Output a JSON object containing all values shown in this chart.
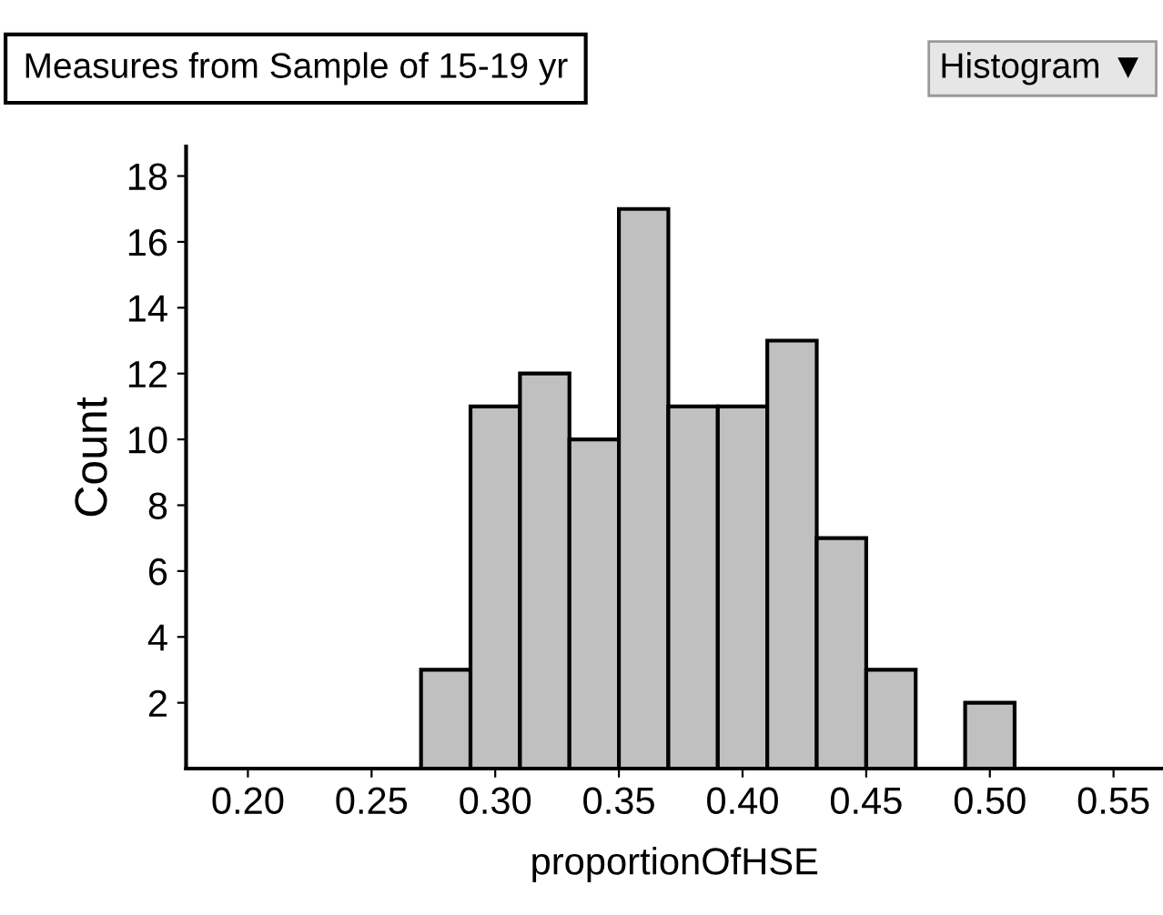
{
  "chart_data": {
    "type": "histogram",
    "title": "Measures from Sample of 15-19 yr",
    "annotations": [
      "Histogram ▼"
    ],
    "xlabel": "proportionOfHSE",
    "ylabel": "Count",
    "bins": [
      0.27,
      0.29,
      0.31,
      0.33,
      0.35,
      0.37,
      0.39,
      0.41,
      0.43,
      0.45,
      0.47,
      0.49,
      0.51
    ],
    "values": [
      3,
      11,
      12,
      10,
      17,
      11,
      11,
      13,
      7,
      3,
      0,
      2
    ],
    "color": "#c0c0c0",
    "xlim": [
      0.175,
      0.57
    ],
    "xticks": [
      {
        "value": 0.2,
        "label": "0.20"
      },
      {
        "value": 0.25,
        "label": "0.25"
      },
      {
        "value": 0.3,
        "label": "0.30"
      },
      {
        "value": 0.35,
        "label": "0.35"
      },
      {
        "value": 0.4,
        "label": "0.40"
      },
      {
        "value": 0.45,
        "label": "0.45"
      },
      {
        "value": 0.5,
        "label": "0.50"
      },
      {
        "value": 0.55,
        "label": "0.55"
      }
    ],
    "ylim": [
      0,
      18.9
    ],
    "yticks": [
      2,
      4,
      6,
      8,
      10,
      12,
      14,
      16,
      18
    ],
    "grid": false,
    "legend": false
  }
}
